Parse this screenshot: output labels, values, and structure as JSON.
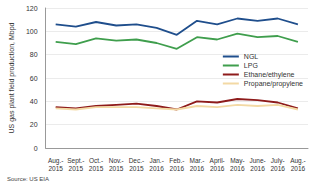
{
  "chart_data": {
    "type": "line",
    "y_label": "US gas plant field production, Mbpd",
    "source": "Source: US EIA",
    "categories": [
      "Aug.-2015",
      "Sept.-2015",
      "Oct.-2015",
      "Nov.-2015",
      "Dec.-2015",
      "Jan.-2016",
      "Feb.-2016",
      "Mar.-2016",
      "April-2016",
      "May-2016",
      "June-2016",
      "July-2016",
      "Aug.-2016"
    ],
    "series": [
      {
        "name": "NGL",
        "color": "#1f4e8c",
        "values": [
          106,
          104,
          108,
          105,
          106,
          103,
          97,
          109,
          106,
          111,
          109,
          111,
          106
        ]
      },
      {
        "name": "LPG",
        "color": "#3f9e4d",
        "values": [
          91,
          89,
          94,
          92,
          93,
          90,
          85,
          95,
          93,
          98,
          95,
          96,
          91
        ]
      },
      {
        "name": "Ethane/ethylene",
        "color": "#8e1b1b",
        "values": [
          35,
          34,
          36,
          37,
          38,
          36,
          33,
          40,
          39,
          42,
          41,
          39,
          34
        ]
      },
      {
        "name": "Propane/propylene",
        "color": "#f3d9a4",
        "values": [
          34,
          33,
          35,
          35,
          35,
          34,
          33,
          36,
          35,
          37,
          36,
          37,
          33
        ]
      }
    ],
    "ylim": [
      0,
      120
    ],
    "yticks": [
      0,
      20,
      40,
      60,
      80,
      100,
      120
    ],
    "grid": true,
    "legend": "right"
  }
}
